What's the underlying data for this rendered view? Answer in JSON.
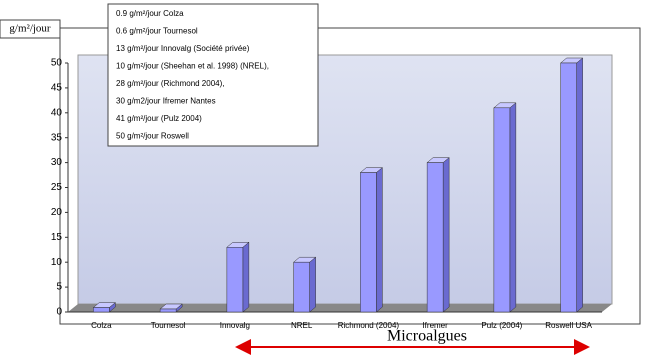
{
  "chart_data": {
    "type": "bar3d",
    "y_label": "g/m²/jour",
    "categories": [
      "Colza",
      "Tournesol",
      "Innovalg",
      "NREL",
      "Richmond (2004)",
      "Ifremer",
      "Pulz (2004)",
      "Roswell USA"
    ],
    "values": [
      0.9,
      0.6,
      13,
      10,
      28,
      30,
      41,
      50
    ],
    "color": "#9999ff",
    "ylim": [
      0,
      50
    ],
    "yticks": [
      0,
      5,
      10,
      15,
      20,
      25,
      30,
      35,
      40,
      45,
      50
    ],
    "grid": false,
    "notes": [
      "0.9 g/m²/jour  Colza",
      "0.6 g/m²/jour  Tournesol",
      "13 g/m²/jour Innovalg (Société privée)",
      "10 g/m²/jour (Sheehan et al. 1998) (NREL),",
      "28 g/m²/jour (Richmond 2004),",
      "30 g/m2/jour Ifremer Nantes",
      "41 g/m²/jour (Pulz 2004)",
      "50 g/m²/jour  Roswell"
    ],
    "group_label": "Microalgues"
  }
}
